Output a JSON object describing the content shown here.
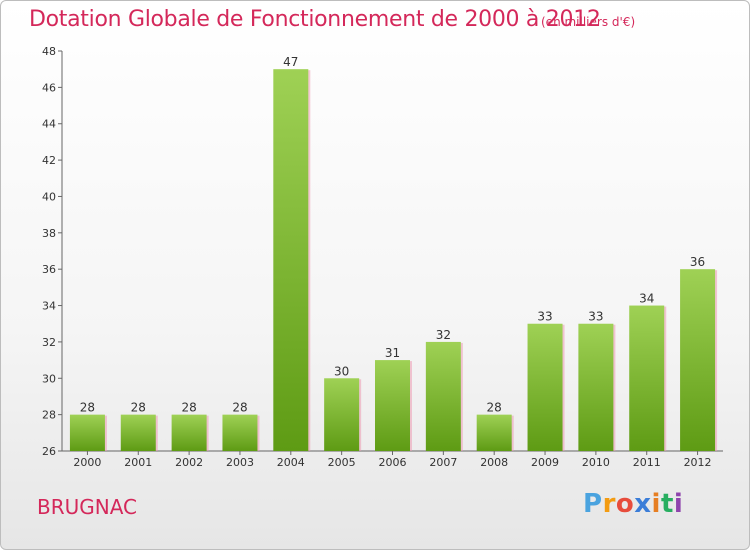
{
  "header": {
    "title": "Dotation Globale de Fonctionnement de 2000 à 2012",
    "unit": "(en milliers d'€)"
  },
  "footer": {
    "commune": "BRUGNAC",
    "logo": "Proxiti"
  },
  "colors": {
    "title": "#d4285a",
    "bar_top": "#9fd155",
    "bar_bottom": "#5e9b14",
    "bar_shadow": "#ec9bb2"
  },
  "chart_data": {
    "type": "bar",
    "categories": [
      "2000",
      "2001",
      "2002",
      "2003",
      "2004",
      "2005",
      "2006",
      "2007",
      "2008",
      "2009",
      "2010",
      "2011",
      "2012"
    ],
    "values": [
      28,
      28,
      28,
      28,
      47,
      30,
      31,
      32,
      28,
      33,
      33,
      34,
      36
    ],
    "ylim": [
      26,
      48
    ],
    "yticks": [
      26,
      28,
      30,
      32,
      34,
      36,
      38,
      40,
      42,
      44,
      46,
      48
    ],
    "grid": false
  }
}
